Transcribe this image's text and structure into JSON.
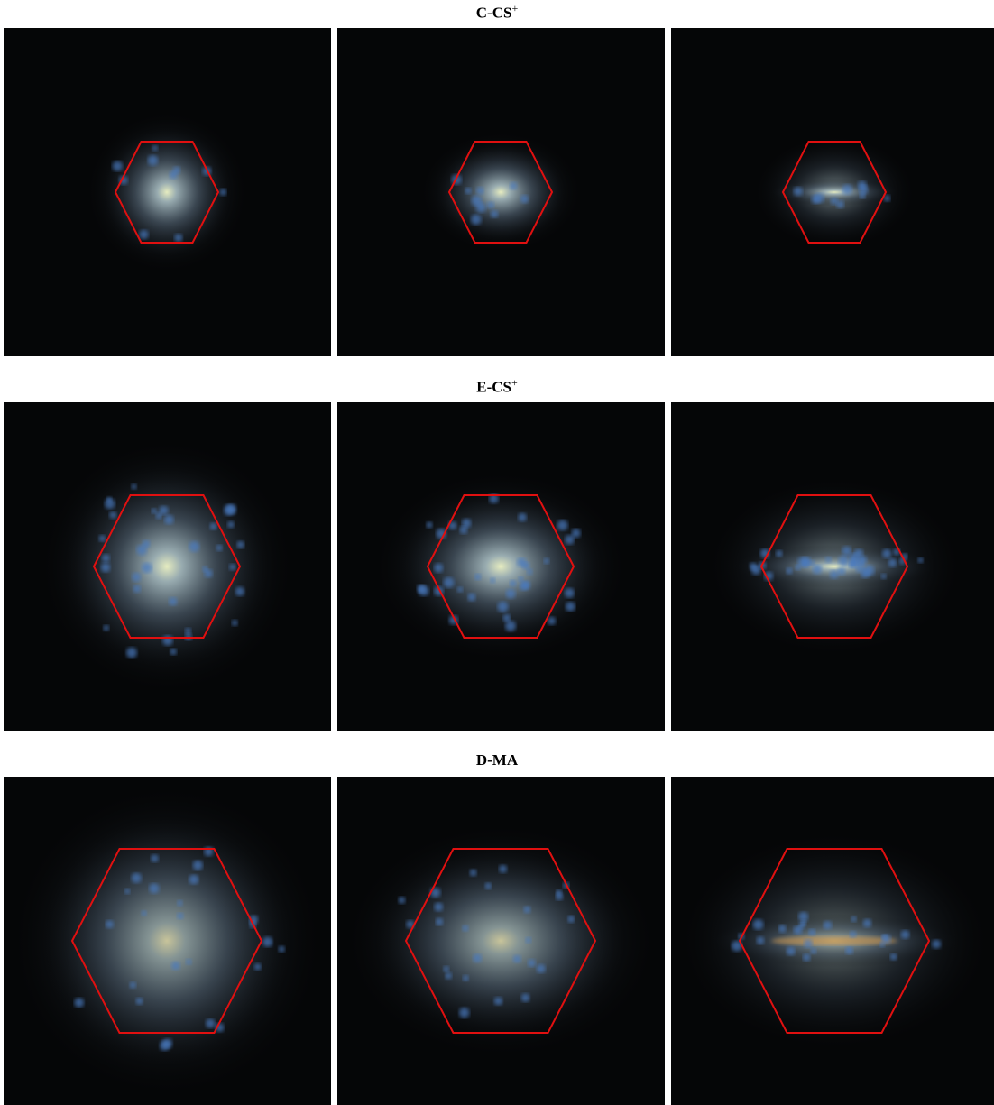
{
  "rows": [
    {
      "title": "C-CS",
      "title_sup": "+"
    },
    {
      "title": "E-CS",
      "title_sup": "+"
    },
    {
      "title": "D-MA"
    }
  ]
}
